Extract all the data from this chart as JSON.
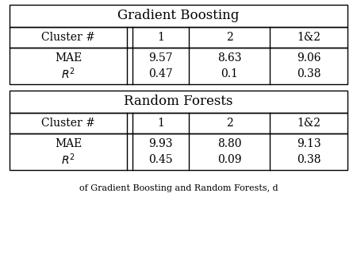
{
  "gb_title": "Gradient Boosting",
  "rf_title": "Random Forests",
  "col_header": [
    "Cluster #",
    "1",
    "2",
    "1&2"
  ],
  "gb_mae": [
    "MAE",
    "9.57",
    "8.63",
    "9.06"
  ],
  "gb_r2": [
    "$R^2$",
    "0.47",
    "0.1",
    "0.38"
  ],
  "rf_mae": [
    "MAE",
    "9.93",
    "8.80",
    "9.13"
  ],
  "rf_r2": [
    "$R^2$",
    "0.45",
    "0.09",
    "0.38"
  ],
  "bg_color": "white",
  "text_color": "black",
  "line_color": "black",
  "font_size": 10,
  "title_font_size": 12,
  "caption": "of Gradient Boosting and Random Forests, d"
}
